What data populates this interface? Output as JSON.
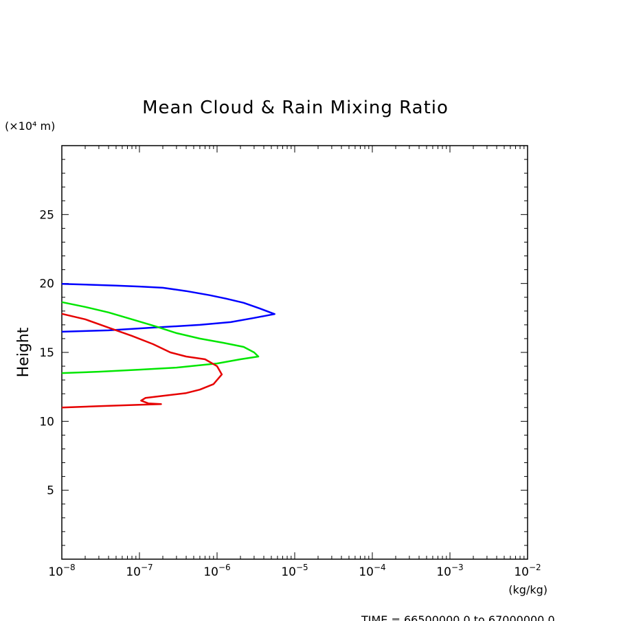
{
  "chart_data": {
    "type": "line",
    "title": "Mean Cloud & Rain Mixing Ratio",
    "ylabel": "Height",
    "y_unit": "(×10⁴ m)",
    "x_unit": "(kg/kg)",
    "x_scale": "log",
    "xlim": [
      1e-08,
      0.01
    ],
    "ylim": [
      0,
      30
    ],
    "x_tick_labels": [
      {
        "base": "10",
        "exp": "−8"
      },
      {
        "base": "10",
        "exp": "−7"
      },
      {
        "base": "10",
        "exp": "−6"
      },
      {
        "base": "10",
        "exp": "−5"
      },
      {
        "base": "10",
        "exp": "−4"
      },
      {
        "base": "10",
        "exp": "−3"
      },
      {
        "base": "10",
        "exp": "−2"
      }
    ],
    "y_ticks": [
      5,
      10,
      15,
      20,
      25
    ],
    "y_tick_labels": [
      "5",
      "10",
      "15",
      "20",
      "25"
    ],
    "grid": false,
    "series": [
      {
        "color": "#0000ff",
        "points": [
          [
            1e-08,
            19.97
          ],
          [
            2e-08,
            19.92
          ],
          [
            5e-08,
            19.85
          ],
          [
            1e-07,
            19.78
          ],
          [
            2e-07,
            19.69
          ],
          [
            4e-07,
            19.45
          ],
          [
            8e-07,
            19.15
          ],
          [
            1.3e-06,
            18.9
          ],
          [
            2.2e-06,
            18.6
          ],
          [
            3.5e-06,
            18.2
          ],
          [
            5.5e-06,
            17.78
          ],
          [
            3e-06,
            17.5
          ],
          [
            1.5e-06,
            17.2
          ],
          [
            6e-07,
            17.0
          ],
          [
            1.5e-07,
            16.8
          ],
          [
            4e-08,
            16.6
          ],
          [
            1e-08,
            16.5
          ]
        ]
      },
      {
        "color": "#00e600",
        "points": [
          [
            1e-08,
            18.65
          ],
          [
            2e-08,
            18.3
          ],
          [
            4e-08,
            17.9
          ],
          [
            8e-08,
            17.4
          ],
          [
            1.6e-07,
            16.9
          ],
          [
            3e-07,
            16.4
          ],
          [
            6e-07,
            16.0
          ],
          [
            1.2e-06,
            15.7
          ],
          [
            2.2e-06,
            15.4
          ],
          [
            3e-06,
            15.0
          ],
          [
            3.4e-06,
            14.7
          ],
          [
            2e-06,
            14.5
          ],
          [
            1e-06,
            14.2
          ],
          [
            3e-07,
            13.9
          ],
          [
            1e-07,
            13.75
          ],
          [
            3e-08,
            13.6
          ],
          [
            1e-08,
            13.5
          ]
        ]
      },
      {
        "color": "#e60000",
        "points": [
          [
            1e-08,
            17.8
          ],
          [
            2e-08,
            17.4
          ],
          [
            4e-08,
            16.8
          ],
          [
            8e-08,
            16.2
          ],
          [
            1.5e-07,
            15.6
          ],
          [
            2.5e-07,
            15.0
          ],
          [
            4e-07,
            14.7
          ],
          [
            7e-07,
            14.5
          ],
          [
            1e-06,
            14.0
          ],
          [
            1.15e-06,
            13.4
          ],
          [
            9e-07,
            12.7
          ],
          [
            6e-07,
            12.3
          ],
          [
            4e-07,
            12.05
          ],
          [
            2e-07,
            11.85
          ],
          [
            1.2e-07,
            11.7
          ],
          [
            1.05e-07,
            11.5
          ],
          [
            1.3e-07,
            11.3
          ],
          [
            1.9e-07,
            11.25
          ],
          [
            1e-07,
            11.2
          ],
          [
            3e-08,
            11.1
          ],
          [
            1e-08,
            11.0
          ]
        ]
      }
    ]
  },
  "footer": {
    "time_range": "TIME = 66500000.0 to 67000000.0"
  }
}
